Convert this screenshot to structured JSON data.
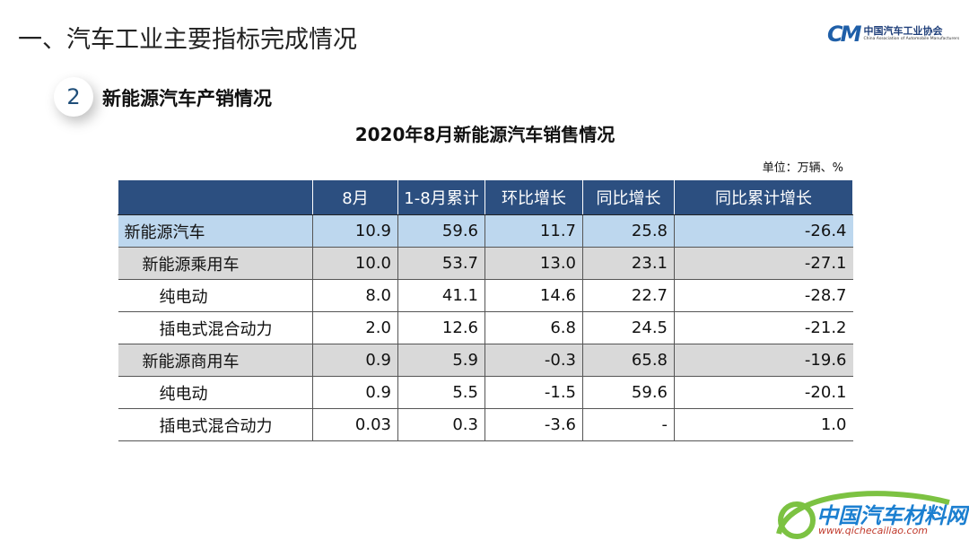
{
  "header": {
    "title": "一、汽车工业主要指标完成情况",
    "logo": {
      "mark": "CM",
      "name": "中国汽车工业协会",
      "name_en": "China Association of Automobile Manufacturers"
    }
  },
  "section": {
    "number": "2",
    "title": "新能源汽车产销情况"
  },
  "table": {
    "title": "2020年8月新能源汽车销售情况",
    "unit": "单位：万辆、%",
    "columns": [
      "8月",
      "1-8月累计",
      "环比增长",
      "同比增长",
      "同比累计增长"
    ],
    "rows": [
      [
        "新能源汽车",
        "10.9",
        "59.6",
        "11.7",
        "25.8",
        "-26.4"
      ],
      [
        "新能源乘用车",
        "10.0",
        "53.7",
        "13.0",
        "23.1",
        "-27.1"
      ],
      [
        "纯电动",
        "8.0",
        "41.1",
        "14.6",
        "22.7",
        "-28.7"
      ],
      [
        "插电式混合动力",
        "2.0",
        "12.6",
        "6.8",
        "24.5",
        "-21.2"
      ],
      [
        "新能源商用车",
        "0.9",
        "5.9",
        "-0.3",
        "65.8",
        "-19.6"
      ],
      [
        "纯电动",
        "0.9",
        "5.5",
        "-1.5",
        "59.6",
        "-20.1"
      ],
      [
        "插电式混合动力",
        "0.03",
        "0.3",
        "-3.6",
        "-",
        "1.0"
      ]
    ]
  },
  "watermark": {
    "name": "中国汽车材料网",
    "url": "www.qichecailiao.com"
  }
}
